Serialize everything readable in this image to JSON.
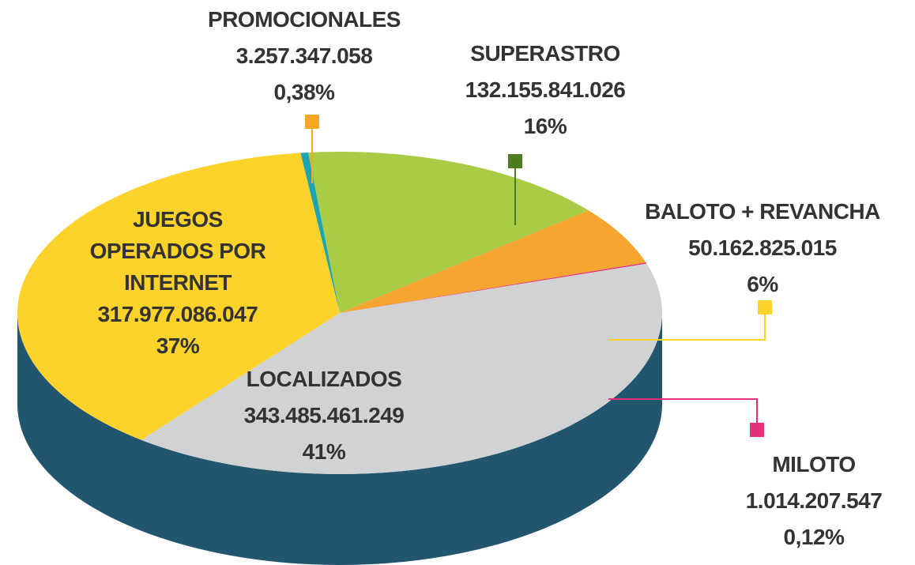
{
  "chart_data": {
    "type": "pie",
    "categories": [
      "PROMOCIONALES",
      "SUPERASTRO",
      "BALOTO + REVANCHA",
      "MILOTO",
      "LOCALIZADOS",
      "JUEGOS OPERADOS POR INTERNET"
    ],
    "values": [
      3257347058,
      132155841026,
      50162825015,
      1014207547,
      343485461249,
      317977086047
    ],
    "value_labels": [
      "3.257.347.058",
      "132.155.841.026",
      "50.162.825.015",
      "1.014.207.547",
      "343.485.461.249",
      "317.977.086.047"
    ],
    "percent_labels": [
      "0,38%",
      "16%",
      "6%",
      "0,12%",
      "41%",
      "37%"
    ],
    "colors": [
      "#1aa5b0",
      "#a8cc46",
      "#f6a530",
      "#e6317a",
      "#d1d2d4",
      "#fdd22b"
    ],
    "side_color": "#22566f"
  }
}
